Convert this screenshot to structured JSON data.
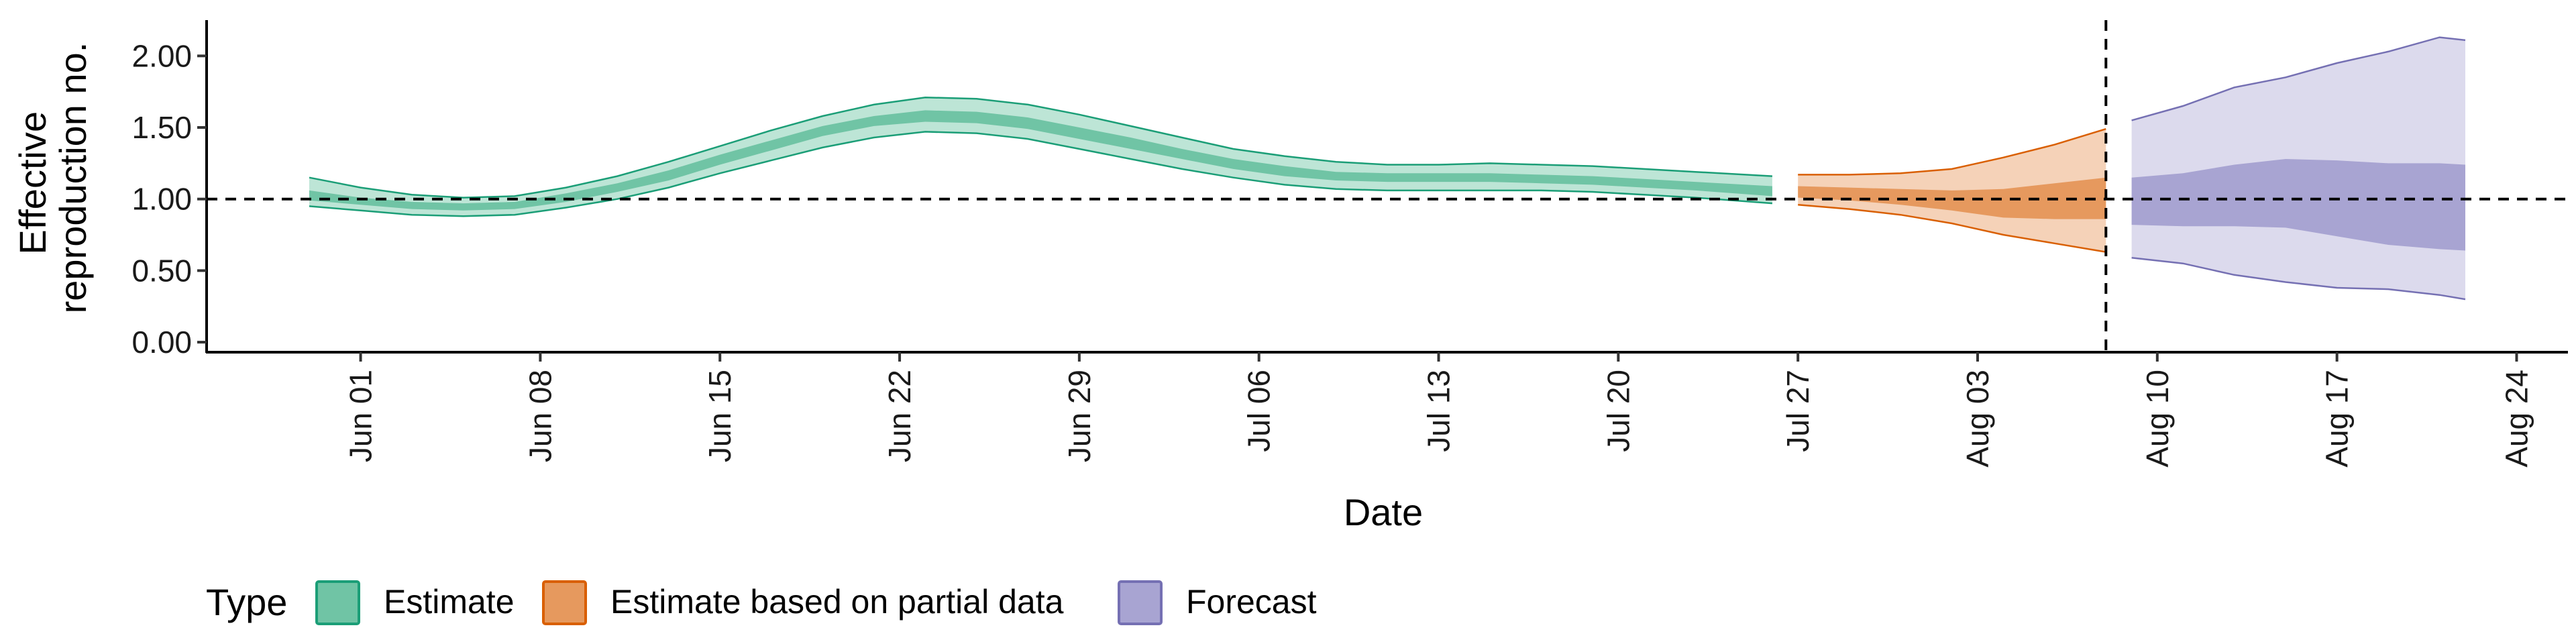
{
  "chart_data": {
    "type": "area",
    "xlabel": "Date",
    "ylabel_lines": [
      "Effective",
      "reproduction no."
    ],
    "x_range": [
      "2020-05-26",
      "2020-08-26"
    ],
    "y_range": [
      -0.07,
      2.25
    ],
    "y_ticks": [
      {
        "value": 0.0,
        "label": "0.00"
      },
      {
        "value": 0.5,
        "label": "0.50"
      },
      {
        "value": 1.0,
        "label": "1.00"
      },
      {
        "value": 1.5,
        "label": "1.50"
      },
      {
        "value": 2.0,
        "label": "2.00"
      }
    ],
    "x_ticks": [
      {
        "date": "2020-06-01",
        "label": "Jun 01"
      },
      {
        "date": "2020-06-08",
        "label": "Jun 08"
      },
      {
        "date": "2020-06-15",
        "label": "Jun 15"
      },
      {
        "date": "2020-06-22",
        "label": "Jun 22"
      },
      {
        "date": "2020-06-29",
        "label": "Jun 29"
      },
      {
        "date": "2020-07-06",
        "label": "Jul 06"
      },
      {
        "date": "2020-07-13",
        "label": "Jul 13"
      },
      {
        "date": "2020-07-20",
        "label": "Jul 20"
      },
      {
        "date": "2020-07-27",
        "label": "Jul 27"
      },
      {
        "date": "2020-08-03",
        "label": "Aug 03"
      },
      {
        "date": "2020-08-10",
        "label": "Aug 10"
      },
      {
        "date": "2020-08-17",
        "label": "Aug 17"
      },
      {
        "date": "2020-08-24",
        "label": "Aug 24"
      }
    ],
    "reference_line_y": 1.0,
    "forecast_start_date": "2020-08-08",
    "legend": {
      "title": "Type",
      "position": "bottom-left",
      "entries": [
        {
          "label": "Estimate",
          "fill": "#70c4a5",
          "stroke": "#1b9e77"
        },
        {
          "label": "Estimate based on partial data",
          "fill": "#e6995e",
          "stroke": "#d95f02"
        },
        {
          "label": "Forecast",
          "fill": "#a8a4d2",
          "stroke": "#7570b3"
        }
      ]
    },
    "series": [
      {
        "type": "Estimate",
        "outer_fill": "#bde5d6",
        "inner_fill": "#70c4a5",
        "stroke": "#1b9e77",
        "points": [
          {
            "date": "2020-05-30",
            "lo90": 0.95,
            "lo50": 0.99,
            "hi50": 1.06,
            "hi90": 1.15
          },
          {
            "date": "2020-06-01",
            "lo90": 0.92,
            "lo50": 0.96,
            "hi50": 1.01,
            "hi90": 1.08
          },
          {
            "date": "2020-06-03",
            "lo90": 0.89,
            "lo50": 0.93,
            "hi50": 0.98,
            "hi90": 1.03
          },
          {
            "date": "2020-06-05",
            "lo90": 0.88,
            "lo50": 0.92,
            "hi50": 0.97,
            "hi90": 1.01
          },
          {
            "date": "2020-06-07",
            "lo90": 0.89,
            "lo50": 0.93,
            "hi50": 0.98,
            "hi90": 1.02
          },
          {
            "date": "2020-06-09",
            "lo90": 0.94,
            "lo50": 0.98,
            "hi50": 1.04,
            "hi90": 1.08
          },
          {
            "date": "2020-06-11",
            "lo90": 1.0,
            "lo50": 1.05,
            "hi50": 1.11,
            "hi90": 1.16
          },
          {
            "date": "2020-06-13",
            "lo90": 1.08,
            "lo50": 1.13,
            "hi50": 1.2,
            "hi90": 1.26
          },
          {
            "date": "2020-06-15",
            "lo90": 1.18,
            "lo50": 1.24,
            "hi50": 1.31,
            "hi90": 1.37
          },
          {
            "date": "2020-06-17",
            "lo90": 1.27,
            "lo50": 1.34,
            "hi50": 1.41,
            "hi90": 1.48
          },
          {
            "date": "2020-06-19",
            "lo90": 1.36,
            "lo50": 1.44,
            "hi50": 1.51,
            "hi90": 1.58
          },
          {
            "date": "2020-06-21",
            "lo90": 1.43,
            "lo50": 1.51,
            "hi50": 1.58,
            "hi90": 1.66
          },
          {
            "date": "2020-06-23",
            "lo90": 1.47,
            "lo50": 1.54,
            "hi50": 1.62,
            "hi90": 1.71
          },
          {
            "date": "2020-06-25",
            "lo90": 1.46,
            "lo50": 1.53,
            "hi50": 1.61,
            "hi90": 1.7
          },
          {
            "date": "2020-06-27",
            "lo90": 1.42,
            "lo50": 1.49,
            "hi50": 1.57,
            "hi90": 1.66
          },
          {
            "date": "2020-06-29",
            "lo90": 1.35,
            "lo50": 1.42,
            "hi50": 1.5,
            "hi90": 1.59
          },
          {
            "date": "2020-07-01",
            "lo90": 1.28,
            "lo50": 1.35,
            "hi50": 1.43,
            "hi90": 1.51
          },
          {
            "date": "2020-07-03",
            "lo90": 1.21,
            "lo50": 1.28,
            "hi50": 1.35,
            "hi90": 1.43
          },
          {
            "date": "2020-07-05",
            "lo90": 1.15,
            "lo50": 1.21,
            "hi50": 1.28,
            "hi90": 1.35
          },
          {
            "date": "2020-07-07",
            "lo90": 1.1,
            "lo50": 1.16,
            "hi50": 1.23,
            "hi90": 1.3
          },
          {
            "date": "2020-07-09",
            "lo90": 1.07,
            "lo50": 1.13,
            "hi50": 1.19,
            "hi90": 1.26
          },
          {
            "date": "2020-07-11",
            "lo90": 1.06,
            "lo50": 1.12,
            "hi50": 1.18,
            "hi90": 1.24
          },
          {
            "date": "2020-07-13",
            "lo90": 1.06,
            "lo50": 1.12,
            "hi50": 1.18,
            "hi90": 1.24
          },
          {
            "date": "2020-07-15",
            "lo90": 1.06,
            "lo50": 1.12,
            "hi50": 1.18,
            "hi90": 1.25
          },
          {
            "date": "2020-07-17",
            "lo90": 1.06,
            "lo50": 1.11,
            "hi50": 1.17,
            "hi90": 1.24
          },
          {
            "date": "2020-07-19",
            "lo90": 1.05,
            "lo50": 1.1,
            "hi50": 1.16,
            "hi90": 1.23
          },
          {
            "date": "2020-07-21",
            "lo90": 1.03,
            "lo50": 1.08,
            "hi50": 1.14,
            "hi90": 1.21
          },
          {
            "date": "2020-07-23",
            "lo90": 1.01,
            "lo50": 1.06,
            "hi50": 1.12,
            "hi90": 1.19
          },
          {
            "date": "2020-07-26",
            "lo90": 0.97,
            "lo50": 1.02,
            "hi50": 1.09,
            "hi90": 1.16
          }
        ]
      },
      {
        "type": "Estimate based on partial data",
        "outer_fill": "#f5d2b8",
        "inner_fill": "#e6995e",
        "stroke": "#d95f02",
        "points": [
          {
            "date": "2020-07-27",
            "lo90": 0.96,
            "lo50": 1.01,
            "hi50": 1.09,
            "hi90": 1.17
          },
          {
            "date": "2020-07-29",
            "lo90": 0.93,
            "lo50": 0.99,
            "hi50": 1.08,
            "hi90": 1.17
          },
          {
            "date": "2020-07-31",
            "lo90": 0.89,
            "lo50": 0.96,
            "hi50": 1.07,
            "hi90": 1.18
          },
          {
            "date": "2020-08-02",
            "lo90": 0.83,
            "lo50": 0.92,
            "hi50": 1.06,
            "hi90": 1.21
          },
          {
            "date": "2020-08-04",
            "lo90": 0.75,
            "lo50": 0.87,
            "hi50": 1.07,
            "hi90": 1.29
          },
          {
            "date": "2020-08-06",
            "lo90": 0.69,
            "lo50": 0.86,
            "hi50": 1.11,
            "hi90": 1.38
          },
          {
            "date": "2020-08-08",
            "lo90": 0.63,
            "lo50": 0.86,
            "hi50": 1.15,
            "hi90": 1.49
          }
        ]
      },
      {
        "type": "Forecast",
        "outer_fill": "#dcdaed",
        "inner_fill": "#a8a4d2",
        "stroke": "#7570b3",
        "points": [
          {
            "date": "2020-08-09",
            "lo90": 0.59,
            "lo50": 0.82,
            "hi50": 1.15,
            "hi90": 1.55
          },
          {
            "date": "2020-08-11",
            "lo90": 0.55,
            "lo50": 0.81,
            "hi50": 1.18,
            "hi90": 1.65
          },
          {
            "date": "2020-08-13",
            "lo90": 0.47,
            "lo50": 0.81,
            "hi50": 1.24,
            "hi90": 1.78
          },
          {
            "date": "2020-08-15",
            "lo90": 0.42,
            "lo50": 0.8,
            "hi50": 1.28,
            "hi90": 1.85
          },
          {
            "date": "2020-08-17",
            "lo90": 0.38,
            "lo50": 0.74,
            "hi50": 1.27,
            "hi90": 1.95
          },
          {
            "date": "2020-08-19",
            "lo90": 0.37,
            "lo50": 0.68,
            "hi50": 1.25,
            "hi90": 2.03
          },
          {
            "date": "2020-08-21",
            "lo90": 0.33,
            "lo50": 0.65,
            "hi50": 1.25,
            "hi90": 2.13
          },
          {
            "date": "2020-08-22",
            "lo90": 0.3,
            "lo50": 0.64,
            "hi50": 1.24,
            "hi90": 2.11
          }
        ]
      }
    ]
  }
}
